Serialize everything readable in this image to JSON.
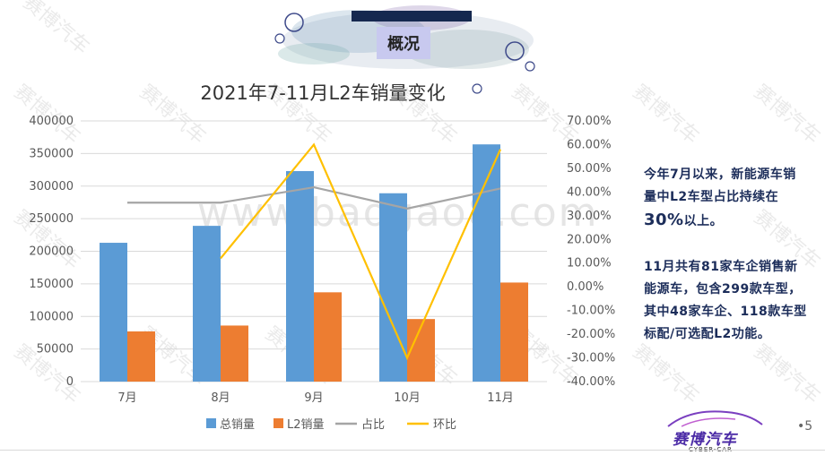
{
  "slide": {
    "section_title": "概况",
    "page_number": "•5",
    "watermark_text": "赛博汽车",
    "watermark_url": "www.baogao8.com",
    "logo_text": "赛博汽车",
    "logo_sub": "CYBER-CAR",
    "colors": {
      "title_bar": "#15284f",
      "section_bg": "#c8c9ef",
      "side_text": "#1c2d5a"
    }
  },
  "side_text": {
    "p1_a": "今年7月以来，新能源车销量中L2车型占比持续在",
    "p1_b": "30%",
    "p1_c": "以上。",
    "p2": "11月共有81家车企销售新能源车，包含299款车型，其中48家车企、118款车型标配/可选配L2功能。"
  },
  "chart_data": {
    "type": "bar",
    "title": "2021年7-11月L2车销量变化",
    "categories": [
      "7月",
      "8月",
      "9月",
      "10月",
      "11月"
    ],
    "y_left": {
      "min": 0,
      "max": 400000,
      "ticks": [
        "0",
        "50000",
        "100000",
        "150000",
        "200000",
        "250000",
        "300000",
        "350000",
        "400000"
      ]
    },
    "y_right": {
      "min": -40,
      "max": 70,
      "ticks": [
        "-40.00%",
        "-30.00%",
        "-20.00%",
        "-10.00%",
        "0.00%",
        "10.00%",
        "20.00%",
        "30.00%",
        "40.00%",
        "50.00%",
        "60.00%",
        "70.00%"
      ]
    },
    "series": [
      {
        "name": "总销量",
        "type": "bar",
        "axis": "left",
        "color": "#5b9bd5",
        "values": [
          213000,
          239000,
          323000,
          289000,
          364000
        ]
      },
      {
        "name": "L2销量",
        "type": "bar",
        "axis": "left",
        "color": "#ed7d31",
        "values": [
          77000,
          86000,
          137000,
          96000,
          152000
        ]
      },
      {
        "name": "占比",
        "type": "line",
        "axis": "right",
        "color": "#a5a5a5",
        "values": [
          35.5,
          35.5,
          42.0,
          33.0,
          41.5
        ]
      },
      {
        "name": "环比",
        "type": "line",
        "axis": "right",
        "color": "#ffc000",
        "values": [
          null,
          12.0,
          60.0,
          -30.0,
          58.0
        ]
      }
    ],
    "legend_position": "bottom",
    "grid": true
  }
}
